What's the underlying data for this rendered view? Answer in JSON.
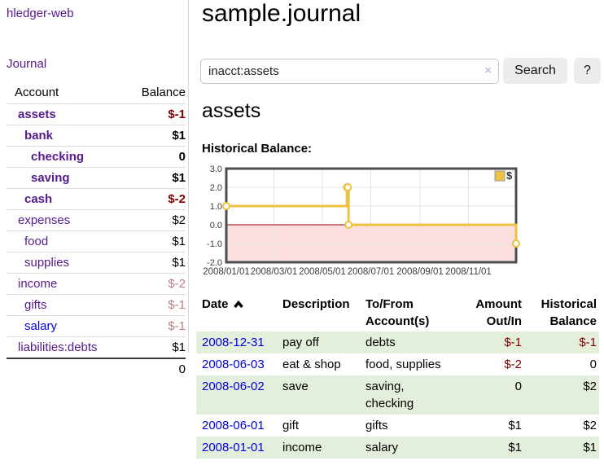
{
  "colors": {
    "link_visited_purple": "#551a8b",
    "link_blue": "#0000ee",
    "negative_red": "#800000",
    "negative_muted_red": "#bc7d7d",
    "row_stripe_green": "#e4efdb",
    "chart_yellow": "#edc240"
  },
  "sidebar": {
    "app_title": "hledger-web",
    "journal_link": "Journal",
    "accounts": {
      "account_header": "Account",
      "balance_header": "Balance",
      "rows": [
        {
          "name": "assets",
          "indent": 0,
          "bold": true,
          "balance": "$-1",
          "balance_style": "neg"
        },
        {
          "name": "bank",
          "indent": 1,
          "bold": true,
          "balance": "$1",
          "balance_style": "pos"
        },
        {
          "name": "checking",
          "indent": 2,
          "bold": true,
          "balance": "0",
          "balance_style": "pos"
        },
        {
          "name": "saving",
          "indent": 2,
          "bold": true,
          "balance": "$1",
          "balance_style": "pos"
        },
        {
          "name": "cash",
          "indent": 1,
          "bold": true,
          "balance": "$-2",
          "balance_style": "neg"
        },
        {
          "name": "expenses",
          "indent": 0,
          "bold": false,
          "balance": "$2",
          "balance_style": "pos"
        },
        {
          "name": "food",
          "indent": 1,
          "bold": false,
          "balance": "$1",
          "balance_style": "pos"
        },
        {
          "name": "supplies",
          "indent": 1,
          "bold": false,
          "balance": "$1",
          "balance_style": "pos"
        },
        {
          "name": "income",
          "indent": 0,
          "bold": false,
          "balance": "$-2",
          "balance_style": "negmuted"
        },
        {
          "name": "gifts",
          "indent": 1,
          "bold": false,
          "balance": "$-1",
          "balance_style": "negmuted"
        },
        {
          "name": "salary",
          "indent": 1,
          "bold": false,
          "unvisited": true,
          "balance": "$-1",
          "balance_style": "negmuted"
        },
        {
          "name": "liabilities:debts",
          "indent": 0,
          "bold": false,
          "balance": "$1",
          "balance_style": "pos"
        }
      ],
      "total": "0"
    }
  },
  "main": {
    "title": "sample.journal",
    "search": {
      "value": "inacct:assets",
      "clear_icon": "×",
      "search_button": "Search",
      "help_button": "?"
    },
    "account_heading": "assets",
    "chart_heading": "Historical Balance:",
    "transactions": {
      "date_header": "Date",
      "description_header": "Description",
      "accounts_header": "To/From Account(s)",
      "amount_header": "Amount Out/In",
      "balance_header": "Historical Balance",
      "rows": [
        {
          "date": "2008-12-31",
          "description": "pay off",
          "accounts": "debts",
          "amount": "$-1",
          "amount_negative": true,
          "balance": "$-1",
          "balance_negative": true
        },
        {
          "date": "2008-06-03",
          "description": "eat & shop",
          "accounts": "food, supplies",
          "amount": "$-2",
          "amount_negative": true,
          "balance": "0",
          "balance_negative": false
        },
        {
          "date": "2008-06-02",
          "description": "save",
          "accounts": "saving, checking",
          "amount": "0",
          "amount_negative": false,
          "balance": "$2",
          "balance_negative": false
        },
        {
          "date": "2008-06-01",
          "description": "gift",
          "accounts": "gifts",
          "amount": "$1",
          "amount_negative": false,
          "balance": "$2",
          "balance_negative": false
        },
        {
          "date": "2008-01-01",
          "description": "income",
          "accounts": "salary",
          "amount": "$1",
          "amount_negative": false,
          "balance": "$1",
          "balance_negative": false
        }
      ]
    }
  },
  "chart_data": {
    "type": "line",
    "step": true,
    "title": "Historical Balance:",
    "series": [
      {
        "name": "$",
        "color": "#edc240",
        "points": [
          {
            "date": "2008-01-01",
            "value": 1
          },
          {
            "date": "2008-06-01",
            "value": 2
          },
          {
            "date": "2008-06-02",
            "value": 2
          },
          {
            "date": "2008-06-03",
            "value": 0
          },
          {
            "date": "2008-12-31",
            "value": -1
          }
        ]
      }
    ],
    "xlim": [
      "2008-01-01",
      "2008-12-31"
    ],
    "ylim": [
      -2,
      3
    ],
    "x_tick_dates": [
      "2008-01-01",
      "2008-03-01",
      "2008-05-01",
      "2008-07-01",
      "2008-09-01",
      "2008-11-01"
    ],
    "x_tick_labels": [
      "2008/01/01",
      "2008/03/01",
      "2008/05/01",
      "2008/07/01",
      "2008/09/01",
      "2008/11/01"
    ],
    "y_ticks": [
      "3.0",
      "2.0",
      "1.0",
      "0.0",
      "-1.0",
      "-2.0"
    ],
    "legend": [
      {
        "label": "$",
        "color": "#edc240"
      }
    ],
    "legend_position": "top-right",
    "grid": true,
    "colors": {
      "grid": "#e6e6e6",
      "border": "#4d4d4d",
      "zero_line": "#990000",
      "negative_region": "#fcdede",
      "marker_fill": "#ffffff",
      "tick_text": "#3c3c3c"
    }
  }
}
